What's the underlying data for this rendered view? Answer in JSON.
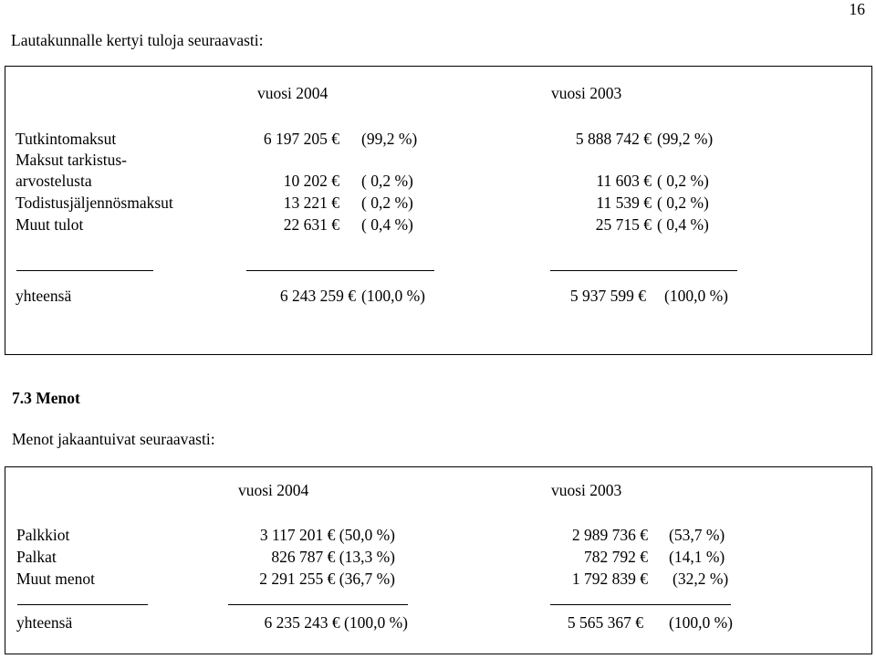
{
  "page_number": "16",
  "intro": "Lautakunnalle kertyi tuloja seuraavasti:",
  "income": {
    "year_a": "vuosi 2004",
    "year_b": "vuosi 2003",
    "rows": [
      {
        "label": "Tutkintomaksut",
        "a_amount": "6 197 205 €",
        "a_pct": "(99,2 %)",
        "b_amount": "5 888 742 €",
        "b_pct": "(99,2 %)"
      },
      {
        "label": "Maksut tarkistus-",
        "a_amount": "",
        "a_pct": "",
        "b_amount": "",
        "b_pct": ""
      },
      {
        "label": "arvostelusta",
        "a_amount": "10 202 €",
        "a_pct": "( 0,2 %)",
        "b_amount": "11 603 €",
        "b_pct": "( 0,2 %)"
      },
      {
        "label": "Todistusjäljennösmaksut",
        "a_amount": "13 221 €",
        "a_pct": "( 0,2 %)",
        "b_amount": "11 539 €",
        "b_pct": "( 0,2 %)"
      },
      {
        "label": "Muut tulot",
        "a_amount": "22 631 €",
        "a_pct": "( 0,4 %)",
        "b_amount": "25 715 €",
        "b_pct": "( 0,4 %)"
      }
    ],
    "total": {
      "label": "yhteensä",
      "a_amount": "6 243 259 €",
      "a_pct": "(100,0 %)",
      "b_amount": "5 937 599 €",
      "b_pct": "(100,0 %)"
    }
  },
  "section_heading": "7.3 Menot",
  "expenses_intro": "Menot jakaantuivat seuraavasti:",
  "expenses": {
    "year_a": "vuosi 2004",
    "year_b": "vuosi 2003",
    "rows": [
      {
        "label": "Palkkiot",
        "a": "3 117 201 € (50,0 %)",
        "b_amount": "2 989 736 €",
        "b_pct": "(53,7 %)"
      },
      {
        "label": "Palkat",
        "a": "826 787 € (13,3 %)",
        "b_amount": "782 792 €",
        "b_pct": "(14,1 %)"
      },
      {
        "label": "Muut menot",
        "a": "2 291 255 € (36,7 %)",
        "b_amount": "1 792 839 €",
        "b_pct": "(32,2 %)"
      }
    ],
    "total": {
      "label": "yhteensä",
      "a": "6 235 243 € (100,0 %)",
      "b_amount": "5 565 367 €",
      "b_pct": "(100,0 %)"
    }
  }
}
